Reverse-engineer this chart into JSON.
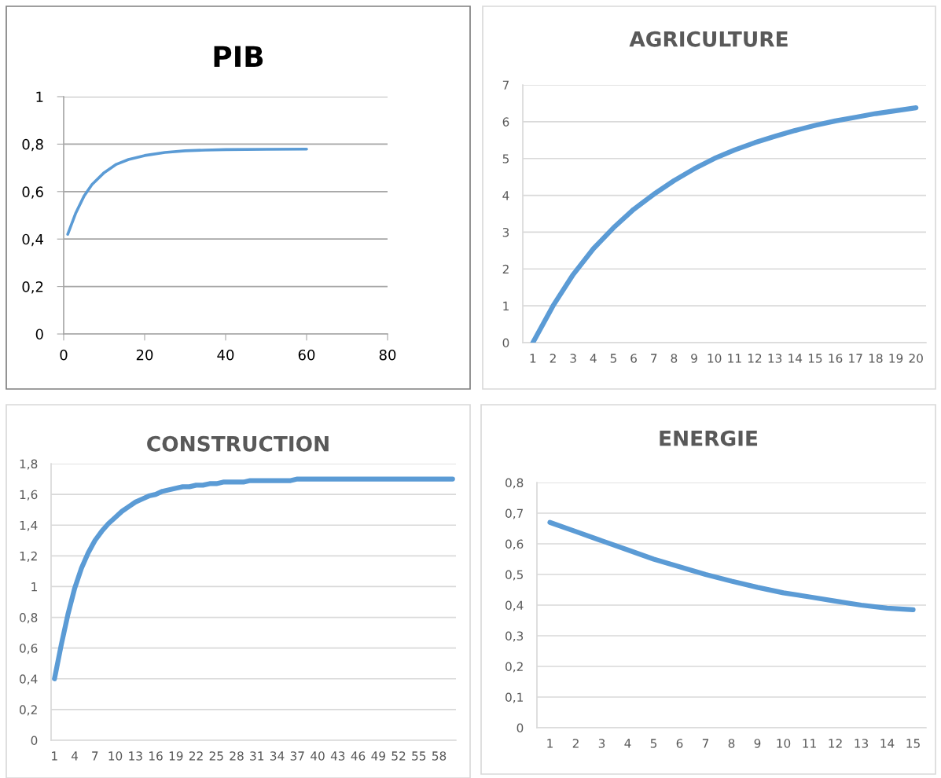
{
  "chart_data": [
    {
      "type": "line",
      "title": "PIB",
      "grid": "y",
      "x": [
        1,
        3,
        5,
        7,
        10,
        13,
        16,
        20,
        25,
        30,
        35,
        40,
        50,
        60
      ],
      "series": [
        {
          "color": "#5b9bd5",
          "values": [
            0.42,
            0.51,
            0.58,
            0.63,
            0.68,
            0.715,
            0.735,
            0.752,
            0.765,
            0.772,
            0.775,
            0.777,
            0.778,
            0.779
          ]
        }
      ],
      "xlim": [
        0,
        80
      ],
      "xticks": [
        0,
        20,
        40,
        60,
        80
      ],
      "ylim": [
        0,
        1
      ],
      "yticks": [
        0,
        {
          "value": 0.2,
          "label": "0,2"
        },
        {
          "value": 0.4,
          "label": "0,4"
        },
        {
          "value": 0.6,
          "label": "0,6"
        },
        {
          "value": 0.8,
          "label": "0,8"
        },
        1
      ]
    },
    {
      "type": "line",
      "title": "AGRICULTURE",
      "grid": "y",
      "categories": [
        "1",
        "2",
        "3",
        "4",
        "5",
        "6",
        "7",
        "8",
        "9",
        "10",
        "11",
        "12",
        "13",
        "14",
        "15",
        "16",
        "17",
        "18",
        "19",
        "20"
      ],
      "series": [
        {
          "color": "#5b9bd5",
          "values": [
            0,
            1.0,
            1.85,
            2.55,
            3.12,
            3.62,
            4.03,
            4.4,
            4.72,
            5.0,
            5.23,
            5.43,
            5.6,
            5.76,
            5.9,
            6.02,
            6.12,
            6.22,
            6.3,
            6.38
          ]
        }
      ],
      "ylim": [
        0,
        7
      ],
      "yticks": [
        0,
        1,
        2,
        3,
        4,
        5,
        6,
        7
      ]
    },
    {
      "type": "line",
      "title": "CONSTRUCTION",
      "grid": "y",
      "categories": [
        "1",
        null,
        null,
        "4",
        null,
        null,
        "7",
        null,
        null,
        "10",
        null,
        null,
        "13",
        null,
        null,
        "16",
        null,
        null,
        "19",
        null,
        null,
        "22",
        null,
        null,
        "25",
        null,
        null,
        "28",
        null,
        null,
        "31",
        null,
        null,
        "34",
        null,
        null,
        "37",
        null,
        null,
        "40",
        null,
        null,
        "43",
        null,
        null,
        "46",
        null,
        null,
        "49",
        null,
        null,
        "52",
        null,
        null,
        "55",
        null,
        null,
        "58",
        null,
        null
      ],
      "series": [
        {
          "color": "#5b9bd5",
          "values": [
            0.4,
            0.62,
            0.82,
            0.99,
            1.12,
            1.22,
            1.3,
            1.36,
            1.41,
            1.45,
            1.49,
            1.52,
            1.55,
            1.57,
            1.59,
            1.6,
            1.62,
            1.63,
            1.64,
            1.65,
            1.65,
            1.66,
            1.66,
            1.67,
            1.67,
            1.68,
            1.68,
            1.68,
            1.68,
            1.69,
            1.69,
            1.69,
            1.69,
            1.69,
            1.69,
            1.69,
            1.7,
            1.7,
            1.7,
            1.7,
            1.7,
            1.7,
            1.7,
            1.7,
            1.7,
            1.7,
            1.7,
            1.7,
            1.7,
            1.7,
            1.7,
            1.7,
            1.7,
            1.7,
            1.7,
            1.7,
            1.7,
            1.7,
            1.7,
            1.7
          ]
        }
      ],
      "ylim": [
        0,
        1.8
      ],
      "yticks": [
        0,
        {
          "value": 0.2,
          "label": "0,2"
        },
        {
          "value": 0.4,
          "label": "0,4"
        },
        {
          "value": 0.6,
          "label": "0,6"
        },
        {
          "value": 0.8,
          "label": "0,8"
        },
        1,
        {
          "value": 1.2,
          "label": "1,2"
        },
        {
          "value": 1.4,
          "label": "1,4"
        },
        {
          "value": 1.6,
          "label": "1,6"
        },
        {
          "value": 1.8,
          "label": "1,8"
        }
      ]
    },
    {
      "type": "line",
      "title": "ENERGIE",
      "grid": "y",
      "categories": [
        "1",
        "2",
        "3",
        "4",
        "5",
        "6",
        "7",
        "8",
        "9",
        "10",
        "11",
        "12",
        "13",
        "14",
        "15"
      ],
      "series": [
        {
          "color": "#5b9bd5",
          "values": [
            0.67,
            0.64,
            0.61,
            0.58,
            0.55,
            0.525,
            0.5,
            0.478,
            0.458,
            0.44,
            0.427,
            0.413,
            0.4,
            0.39,
            0.385
          ]
        }
      ],
      "ylim": [
        0,
        0.8
      ],
      "yticks": [
        0,
        {
          "value": 0.1,
          "label": "0,1"
        },
        {
          "value": 0.2,
          "label": "0,2"
        },
        {
          "value": 0.3,
          "label": "0,3"
        },
        {
          "value": 0.4,
          "label": "0,4"
        },
        {
          "value": 0.5,
          "label": "0,5"
        },
        {
          "value": 0.6,
          "label": "0,6"
        },
        {
          "value": 0.7,
          "label": "0,7"
        },
        {
          "value": 0.8,
          "label": "0,8"
        }
      ]
    }
  ]
}
